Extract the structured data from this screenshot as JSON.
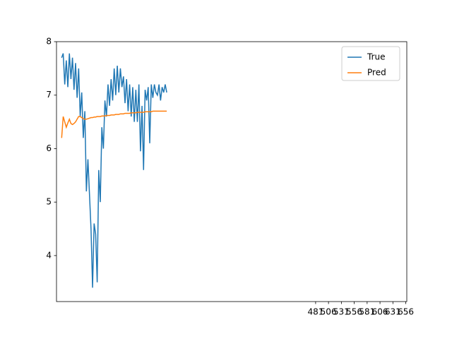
{
  "chart_data": {
    "type": "line",
    "x": [
      -12,
      -9,
      -6,
      -3,
      0,
      3,
      6,
      9,
      12,
      15,
      18,
      21,
      24,
      27,
      30,
      33,
      36,
      39,
      42,
      45,
      48,
      51,
      54,
      57,
      60,
      63,
      66,
      69,
      72,
      75,
      78,
      81,
      84,
      87,
      90,
      93,
      96,
      99,
      102,
      105,
      108,
      111,
      114,
      117,
      120,
      123,
      126,
      129,
      132,
      135,
      138,
      141,
      144,
      147,
      150,
      153,
      156,
      159,
      162,
      165,
      168,
      171,
      174,
      177,
      180,
      183,
      186,
      189,
      192
    ],
    "series": [
      {
        "name": "True",
        "color": "#1f77b4",
        "values": [
          7.7,
          7.78,
          7.2,
          7.65,
          7.15,
          7.78,
          7.3,
          7.7,
          7.1,
          7.6,
          6.95,
          7.5,
          6.6,
          7.05,
          6.2,
          6.7,
          5.2,
          5.8,
          5.15,
          4.5,
          3.4,
          4.6,
          4.4,
          3.5,
          5.6,
          5.0,
          6.4,
          6.0,
          6.9,
          6.6,
          7.2,
          6.8,
          7.3,
          6.9,
          7.5,
          7.0,
          7.55,
          7.05,
          7.5,
          7.15,
          7.35,
          6.85,
          7.3,
          6.7,
          7.2,
          6.6,
          7.15,
          6.5,
          7.1,
          6.5,
          7.2,
          5.95,
          6.8,
          5.6,
          7.1,
          6.9,
          7.15,
          6.1,
          7.2,
          6.95,
          7.2,
          7.05,
          7.0,
          7.2,
          6.9,
          7.15,
          7.05,
          7.2,
          7.05
        ]
      },
      {
        "name": "Pred",
        "color": "#ff7f0e",
        "values": [
          6.2,
          6.6,
          6.5,
          6.4,
          6.48,
          6.55,
          6.47,
          6.45,
          6.47,
          6.5,
          6.55,
          6.6,
          6.6,
          6.58,
          6.56,
          6.55,
          6.55,
          6.56,
          6.57,
          6.58,
          6.58,
          6.59,
          6.59,
          6.6,
          6.6,
          6.6,
          6.61,
          6.61,
          6.61,
          6.62,
          6.62,
          6.62,
          6.63,
          6.63,
          6.63,
          6.64,
          6.64,
          6.64,
          6.65,
          6.65,
          6.65,
          6.66,
          6.66,
          6.66,
          6.66,
          6.67,
          6.67,
          6.67,
          6.67,
          6.68,
          6.68,
          6.68,
          6.68,
          6.68,
          6.69,
          6.69,
          6.69,
          6.69,
          6.69,
          6.7,
          6.7,
          6.7,
          6.7,
          6.7,
          6.7,
          6.7,
          6.7,
          6.7,
          6.7
        ]
      }
    ],
    "xlim": [
      -22,
      658
    ],
    "ylim": [
      3.14,
      8.0
    ],
    "xticks": [
      481,
      506,
      531,
      556,
      581,
      606,
      631,
      656
    ],
    "yticks": [
      4,
      5,
      6,
      7,
      8
    ],
    "legend": "upper right"
  }
}
